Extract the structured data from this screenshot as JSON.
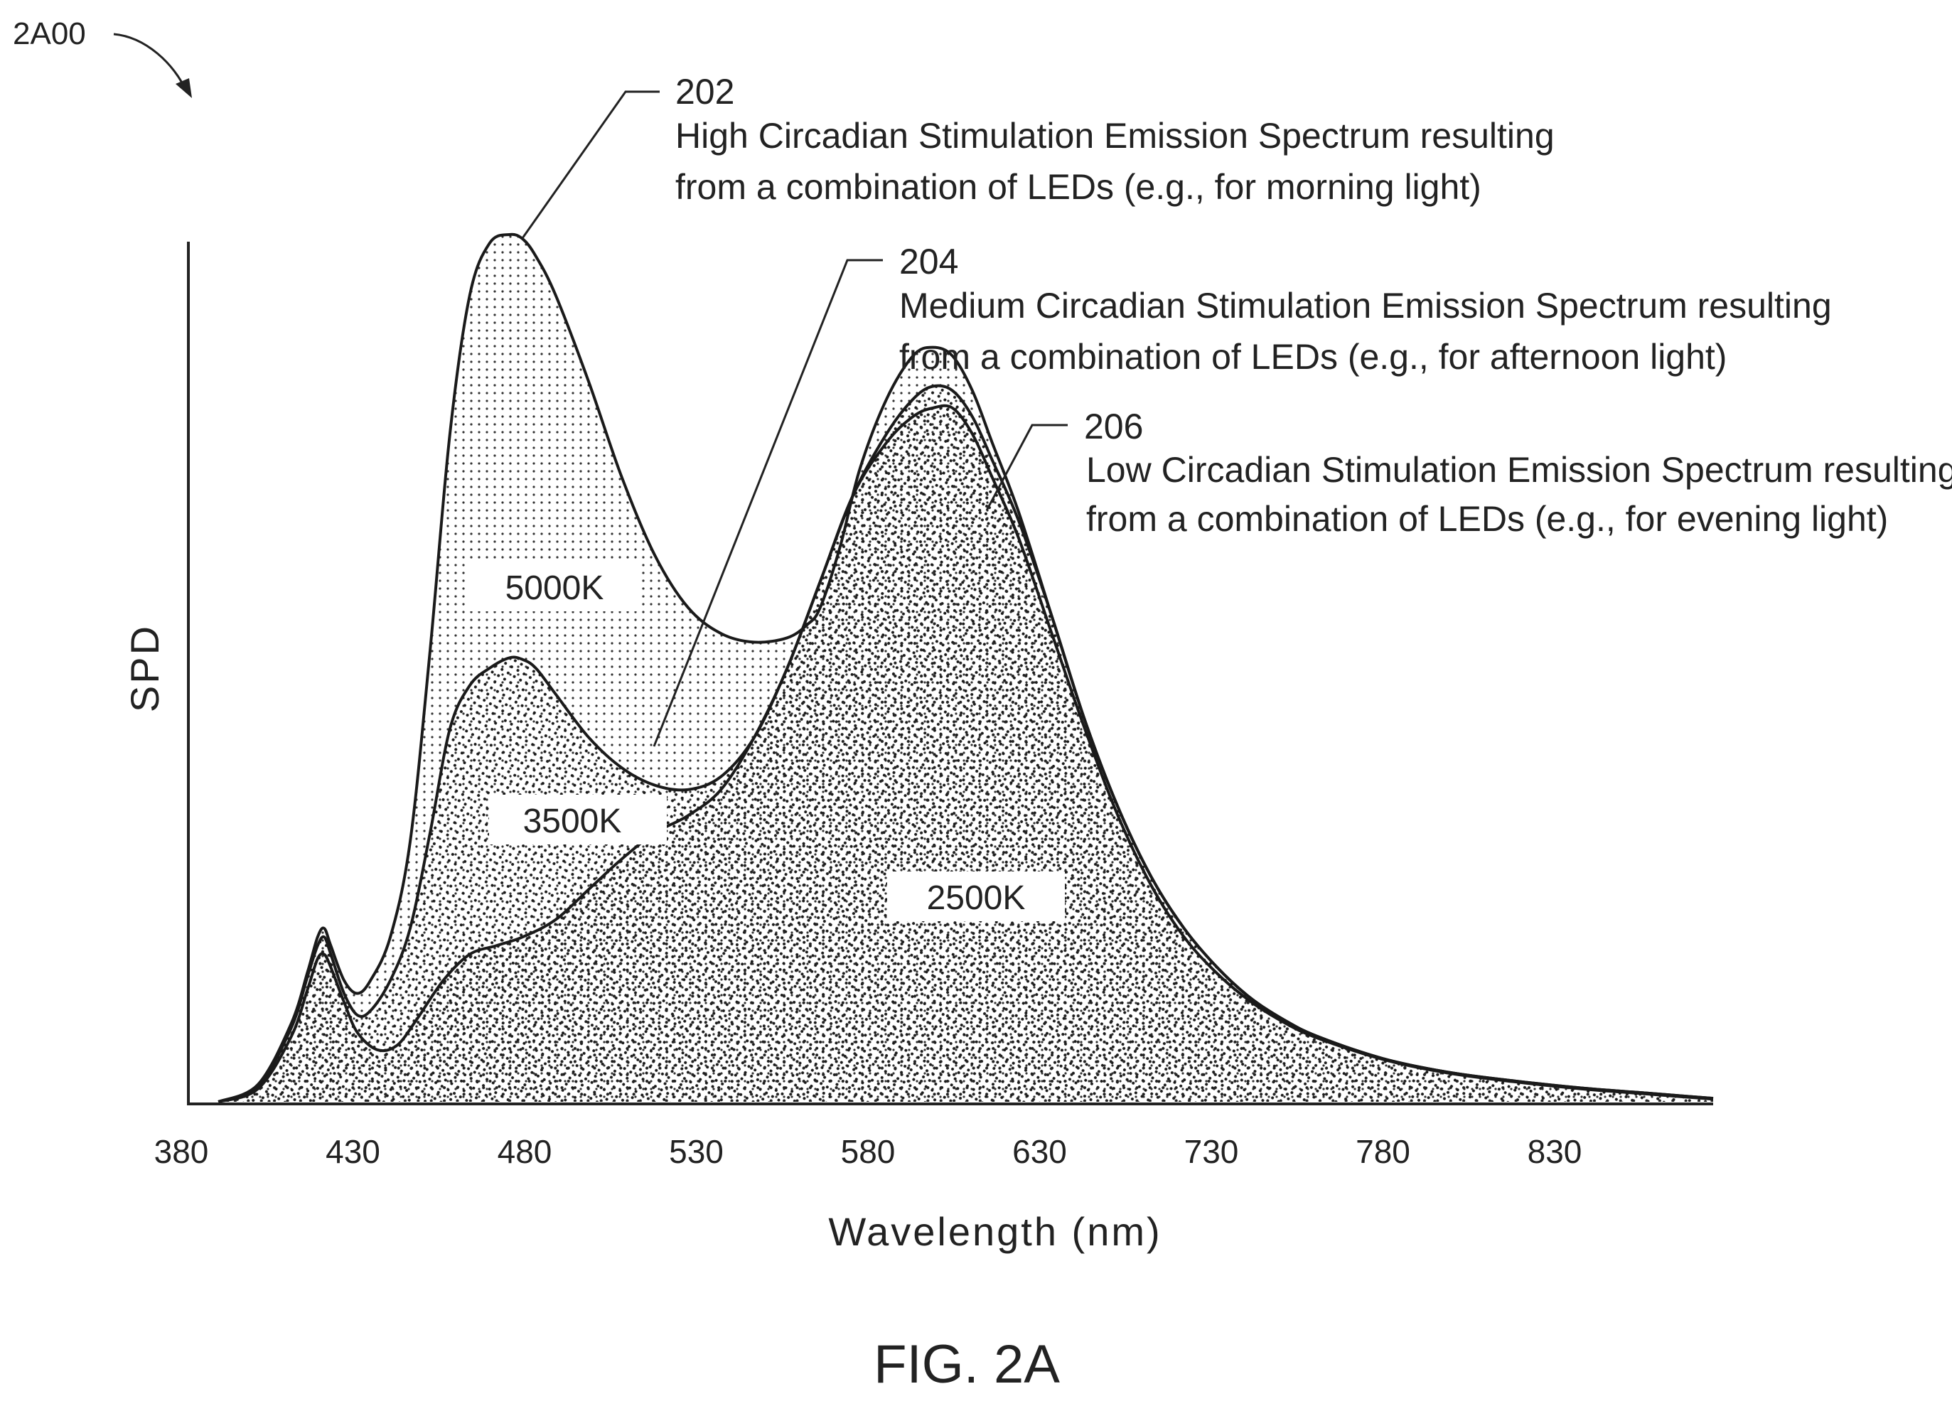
{
  "figure": {
    "ref": "2A00",
    "caption": "FIG. 2A"
  },
  "chart_data": {
    "type": "area",
    "xlabel": "Wavelength (nm)",
    "ylabel": "SPD",
    "x_ticks": [
      380,
      430,
      480,
      530,
      580,
      630,
      730,
      780,
      830
    ],
    "xlim": [
      380,
      840
    ],
    "ylim": [
      0,
      1.0
    ],
    "y_ticks_shown": false,
    "grid": false,
    "series": [
      {
        "ref_num": "202",
        "cct_label": "5000K",
        "description": [
          "High Circadian Stimulation Emission Spectrum resulting",
          "from a combination of LEDs (e.g., for morning light)"
        ],
        "x": [
          388,
          400,
          410,
          415,
          418,
          420,
          422,
          426,
          430,
          434,
          440,
          446,
          452,
          458,
          464,
          470,
          476,
          480,
          484,
          490,
          500,
          510,
          520,
          530,
          540,
          550,
          560,
          566,
          570,
          576,
          582,
          590,
          598,
          604,
          610,
          616,
          622,
          630,
          640,
          650,
          660,
          670,
          680,
          690,
          700,
          710,
          720,
          740,
          760,
          780,
          800,
          820,
          830,
          840
        ],
        "y": [
          0.0,
          0.02,
          0.09,
          0.15,
          0.19,
          0.2,
          0.18,
          0.14,
          0.125,
          0.14,
          0.19,
          0.3,
          0.52,
          0.77,
          0.93,
          0.99,
          1.0,
          0.995,
          0.975,
          0.93,
          0.83,
          0.72,
          0.63,
          0.57,
          0.54,
          0.53,
          0.535,
          0.55,
          0.57,
          0.64,
          0.73,
          0.81,
          0.86,
          0.87,
          0.86,
          0.82,
          0.76,
          0.68,
          0.56,
          0.44,
          0.34,
          0.26,
          0.2,
          0.155,
          0.12,
          0.095,
          0.076,
          0.05,
          0.034,
          0.024,
          0.016,
          0.01,
          0.007,
          0.004
        ]
      },
      {
        "ref_num": "204",
        "cct_label": "3500K",
        "description": [
          "Medium Circadian Stimulation Emission Spectrum resulting",
          "from a combination of LEDs (e.g., for afternoon light)"
        ],
        "x": [
          388,
          400,
          410,
          415,
          418,
          420,
          422,
          426,
          430,
          434,
          440,
          446,
          452,
          458,
          464,
          470,
          476,
          480,
          484,
          490,
          500,
          510,
          520,
          530,
          540,
          550,
          560,
          570,
          580,
          590,
          598,
          604,
          610,
          616,
          622,
          630,
          640,
          650,
          660,
          670,
          680,
          690,
          700,
          710,
          720,
          740,
          760,
          780,
          800,
          820,
          830,
          840
        ],
        "y": [
          0.0,
          0.018,
          0.085,
          0.145,
          0.18,
          0.19,
          0.17,
          0.125,
          0.1,
          0.105,
          0.14,
          0.2,
          0.31,
          0.43,
          0.48,
          0.5,
          0.512,
          0.51,
          0.5,
          0.47,
          0.42,
          0.385,
          0.365,
          0.36,
          0.375,
          0.42,
          0.5,
          0.6,
          0.7,
          0.77,
          0.81,
          0.825,
          0.82,
          0.79,
          0.74,
          0.67,
          0.56,
          0.44,
          0.34,
          0.26,
          0.2,
          0.155,
          0.12,
          0.095,
          0.076,
          0.05,
          0.034,
          0.024,
          0.016,
          0.01,
          0.007,
          0.004
        ]
      },
      {
        "ref_num": "206",
        "cct_label": "2500K",
        "description": [
          "Low Circadian Stimulation Emission Spectrum resulting",
          "from a combination of LEDs (e.g., for evening light)"
        ],
        "x": [
          388,
          400,
          410,
          415,
          418,
          420,
          422,
          426,
          430,
          436,
          442,
          448,
          456,
          464,
          472,
          480,
          490,
          500,
          510,
          520,
          530,
          540,
          550,
          560,
          570,
          580,
          590,
          598,
          604,
          610,
          616,
          622,
          630,
          640,
          650,
          660,
          670,
          680,
          690,
          700,
          710,
          720,
          740,
          760,
          780,
          800,
          820,
          830,
          840
        ],
        "y": [
          0.0,
          0.015,
          0.075,
          0.13,
          0.165,
          0.17,
          0.155,
          0.115,
          0.08,
          0.06,
          0.065,
          0.095,
          0.14,
          0.17,
          0.18,
          0.19,
          0.21,
          0.245,
          0.28,
          0.31,
          0.33,
          0.36,
          0.42,
          0.5,
          0.6,
          0.7,
          0.76,
          0.79,
          0.8,
          0.8,
          0.77,
          0.72,
          0.65,
          0.54,
          0.43,
          0.33,
          0.25,
          0.19,
          0.148,
          0.116,
          0.092,
          0.074,
          0.049,
          0.033,
          0.023,
          0.015,
          0.009,
          0.006,
          0.003
        ]
      }
    ]
  }
}
